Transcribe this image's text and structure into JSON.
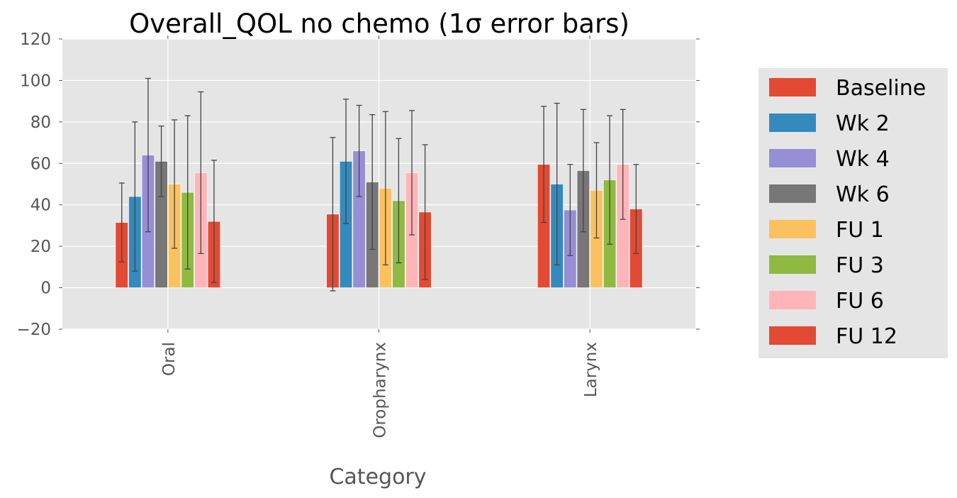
{
  "chart_data": {
    "type": "bar",
    "title": "Overall_QOL no chemo (1σ error bars)",
    "xlabel": "Category",
    "ylabel": "",
    "ylim": [
      -20,
      120
    ],
    "yticks": [
      -20,
      0,
      20,
      40,
      60,
      80,
      100,
      120
    ],
    "ytick_labels": [
      "−20",
      "0",
      "20",
      "40",
      "60",
      "80",
      "100",
      "120"
    ],
    "grid": true,
    "legend_position": "right",
    "categories": [
      "Oral",
      "Oropharynx",
      "Larynx"
    ],
    "series": [
      {
        "name": "Baseline",
        "color": "#E24A33",
        "values": [
          31.5,
          35.5,
          59.5
        ],
        "errors": [
          19,
          37,
          28
        ]
      },
      {
        "name": "Wk 2",
        "color": "#348ABD",
        "values": [
          44,
          61,
          50
        ],
        "errors": [
          36,
          30,
          39
        ]
      },
      {
        "name": "Wk 4",
        "color": "#988ED5",
        "values": [
          64,
          66,
          37.5
        ],
        "errors": [
          37,
          22,
          22
        ]
      },
      {
        "name": "Wk 6",
        "color": "#777777",
        "values": [
          61,
          51,
          56.5
        ],
        "errors": [
          17,
          32.5,
          29.5
        ]
      },
      {
        "name": "FU 1",
        "color": "#FBC15E",
        "values": [
          50,
          48,
          47
        ],
        "errors": [
          31,
          37,
          23
        ]
      },
      {
        "name": "FU 3",
        "color": "#8EBA42",
        "values": [
          46,
          42,
          52
        ],
        "errors": [
          37,
          30,
          31
        ]
      },
      {
        "name": "FU 6",
        "color": "#FFB5B8",
        "values": [
          55.5,
          55.5,
          59.5
        ],
        "errors": [
          39,
          30,
          26.5
        ]
      },
      {
        "name": "FU 12",
        "color": "#E24A33",
        "values": [
          32,
          36.5,
          38
        ],
        "errors": [
          29.5,
          32.5,
          21.5
        ]
      }
    ]
  }
}
